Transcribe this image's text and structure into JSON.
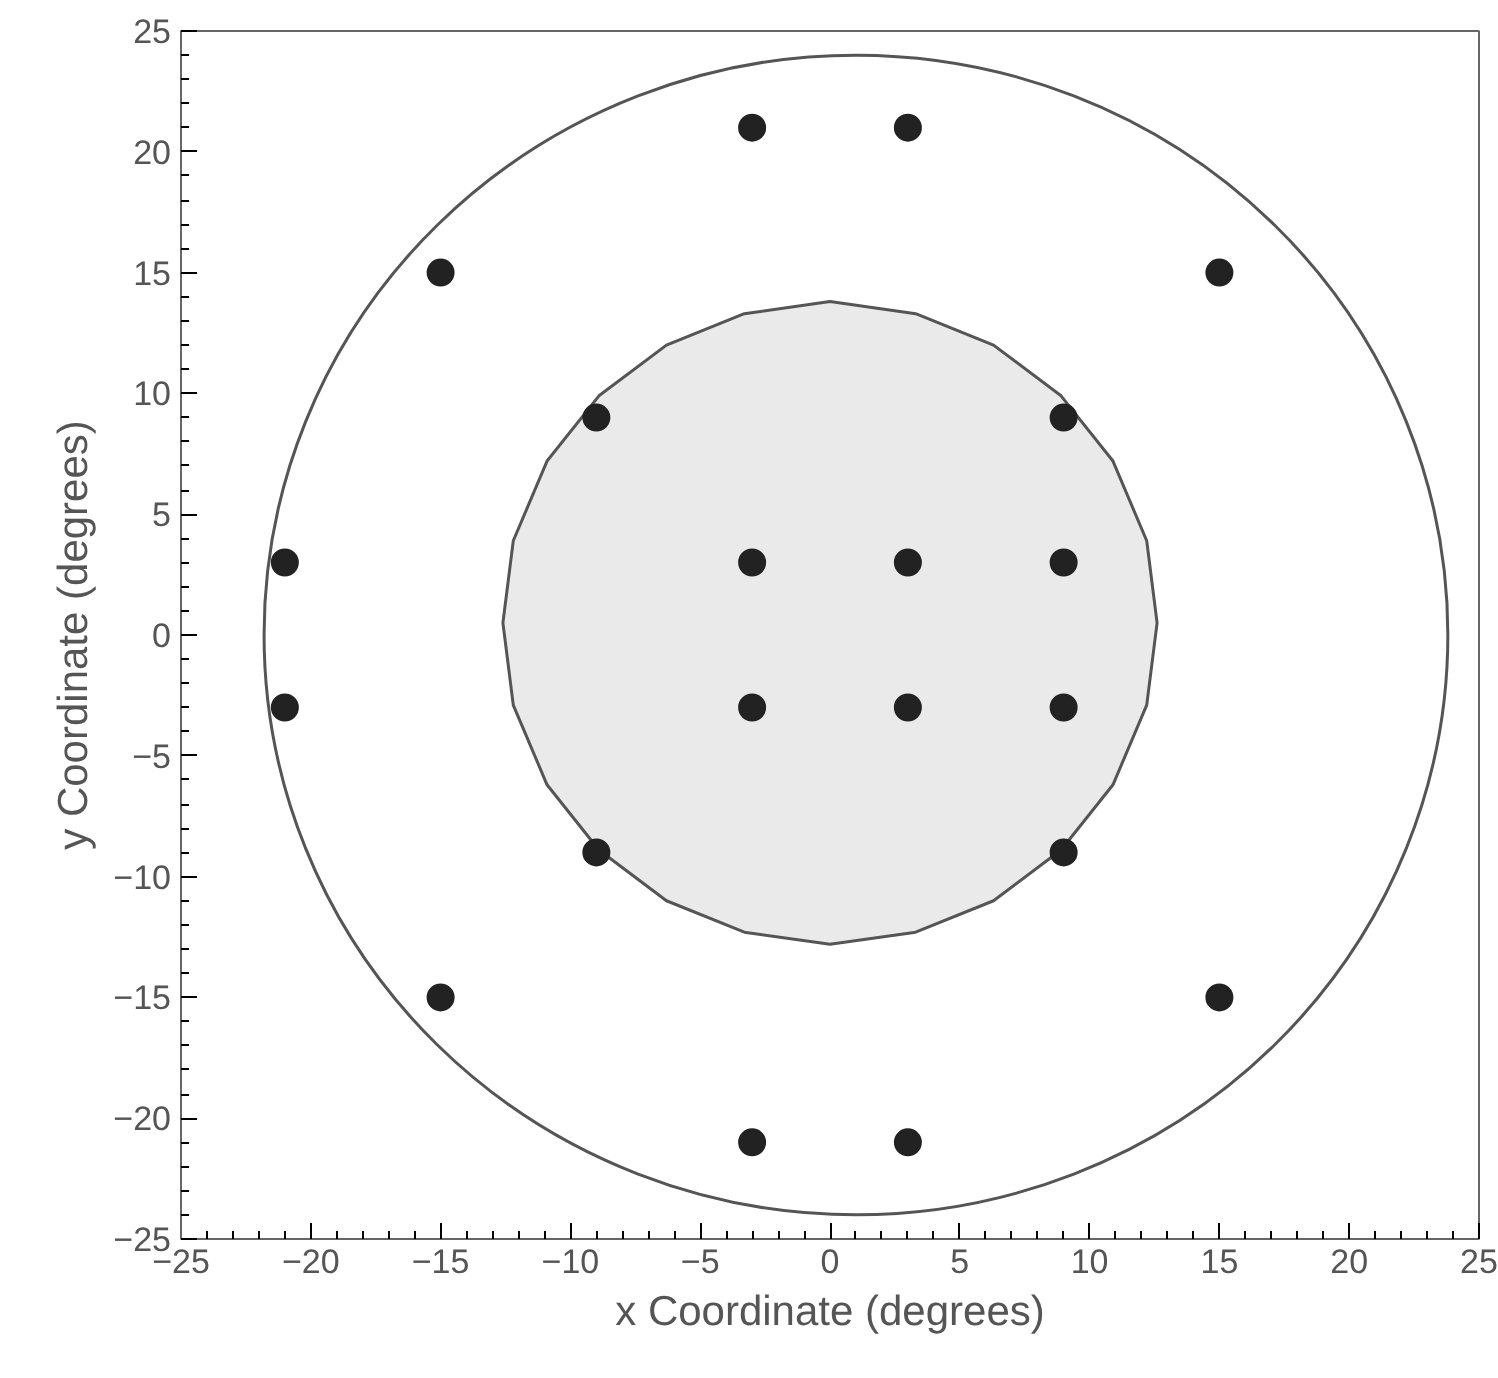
{
  "chart_data": {
    "type": "scatter",
    "xlabel": "x Coordinate (degrees)",
    "ylabel": "y Coordinate (degrees)",
    "xlim": [
      -25,
      25
    ],
    "ylim": [
      -25,
      25
    ],
    "xticks": [
      -25,
      -20,
      -15,
      -10,
      -5,
      0,
      5,
      10,
      15,
      20,
      25
    ],
    "yticks": [
      -25,
      -20,
      -15,
      -10,
      -5,
      0,
      5,
      10,
      15,
      20,
      25
    ],
    "grid": false,
    "marker": "circle",
    "series": [
      {
        "type": "area",
        "marker": "none",
        "color": "#555555",
        "x": [
          12.6,
          12.2,
          10.9,
          8.9,
          6.3,
          3.3,
          0,
          -3.3,
          -6.3,
          -8.9,
          -10.9,
          -12.2,
          -12.6,
          -12.2,
          -10.9,
          -8.9,
          -6.3,
          -3.3,
          0,
          3.3,
          6.3,
          8.9,
          10.9,
          12.2,
          12.6
        ],
        "values": [
          0.5,
          3.9,
          7.2,
          9.9,
          12.0,
          13.3,
          13.8,
          13.3,
          12.0,
          9.9,
          7.2,
          3.9,
          0.5,
          -2.9,
          -6.2,
          -8.9,
          -11.0,
          -12.3,
          -12.8,
          -12.3,
          -11.0,
          -8.9,
          -6.2,
          -2.9,
          0.5
        ]
      },
      {
        "color": "#222222",
        "x": [
          -3,
          3,
          -15,
          15,
          -9,
          9,
          -21,
          -3,
          3,
          9,
          -21,
          -3,
          3,
          9,
          -9,
          9,
          -15,
          15,
          -3,
          3
        ],
        "values": [
          21,
          21,
          15,
          15,
          9,
          9,
          3,
          3,
          3,
          3,
          -3,
          -3,
          -3,
          -3,
          -9,
          -9,
          -15,
          -15,
          -21,
          -21
        ]
      }
    ]
  }
}
